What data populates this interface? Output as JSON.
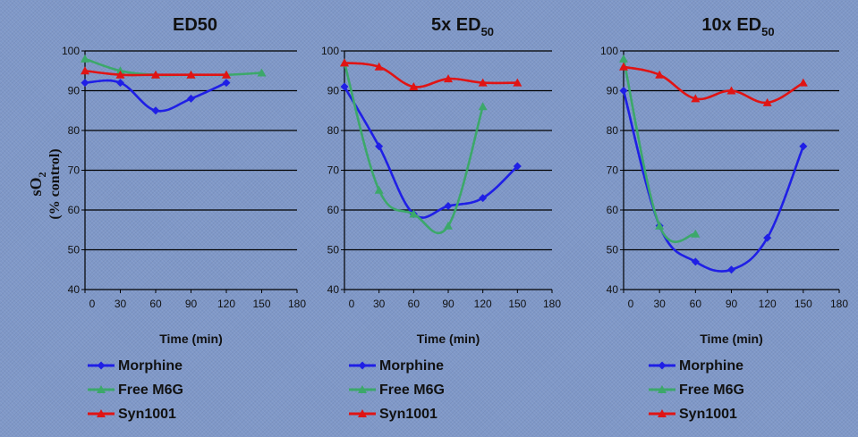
{
  "y_axis_label": {
    "main": "sO",
    "sub": "2",
    "units": "(% control)"
  },
  "chart_data": [
    {
      "type": "line",
      "title": "ED50",
      "title_sub": "",
      "xlabel": "Time (min)",
      "ylabel": "sO2 (% control)",
      "x_ticks": [
        0,
        30,
        60,
        90,
        120,
        150,
        180
      ],
      "y_ticks": [
        40,
        50,
        60,
        70,
        80,
        90,
        100
      ],
      "xlim": [
        0,
        180
      ],
      "ylim": [
        40,
        100
      ],
      "grid": "horizontal",
      "legend_placement": "bottom",
      "series": [
        {
          "name": "Morphine",
          "color": "#1f1fe6",
          "marker": "diamond",
          "x": [
            0,
            30,
            60,
            90,
            120
          ],
          "y": [
            92,
            92,
            85,
            88,
            92
          ]
        },
        {
          "name": "Free M6G",
          "color": "#3ca86a",
          "marker": "triangle",
          "x": [
            0,
            30,
            60,
            90,
            120,
            150
          ],
          "y": [
            98,
            95,
            94,
            94,
            94,
            94.5
          ]
        },
        {
          "name": "Syn1001",
          "color": "#e01414",
          "marker": "triangle",
          "x": [
            0,
            30,
            60,
            90,
            120
          ],
          "y": [
            95,
            94,
            94,
            94,
            94
          ]
        }
      ]
    },
    {
      "type": "line",
      "title": "5x ED",
      "title_sub": "50",
      "xlabel": "Time (min)",
      "ylabel": "sO2 (% control)",
      "x_ticks": [
        0,
        30,
        60,
        90,
        120,
        150,
        180
      ],
      "y_ticks": [
        40,
        50,
        60,
        70,
        80,
        90,
        100
      ],
      "xlim": [
        0,
        180
      ],
      "ylim": [
        40,
        100
      ],
      "grid": "horizontal",
      "legend_placement": "bottom",
      "series": [
        {
          "name": "Morphine",
          "color": "#1f1fe6",
          "marker": "diamond",
          "x": [
            0,
            30,
            60,
            90,
            120,
            150
          ],
          "y": [
            91,
            76,
            59,
            61,
            63,
            71
          ]
        },
        {
          "name": "Free M6G",
          "color": "#3ca86a",
          "marker": "triangle",
          "x": [
            0,
            30,
            60,
            90,
            120
          ],
          "y": [
            97,
            65,
            59,
            56,
            86
          ]
        },
        {
          "name": "Syn1001",
          "color": "#e01414",
          "marker": "triangle",
          "x": [
            0,
            30,
            60,
            90,
            120,
            150
          ],
          "y": [
            97,
            96,
            91,
            93,
            92,
            92
          ]
        }
      ]
    },
    {
      "type": "line",
      "title": "10x ED",
      "title_sub": "50",
      "xlabel": "Time (min)",
      "ylabel": "sO2 (% control)",
      "x_ticks": [
        0,
        30,
        60,
        90,
        120,
        150,
        180
      ],
      "y_ticks": [
        40,
        50,
        60,
        70,
        80,
        90,
        100
      ],
      "xlim": [
        0,
        180
      ],
      "ylim": [
        40,
        100
      ],
      "grid": "horizontal",
      "legend_placement": "bottom",
      "series": [
        {
          "name": "Morphine",
          "color": "#1f1fe6",
          "marker": "diamond",
          "x": [
            0,
            30,
            60,
            90,
            120,
            150
          ],
          "y": [
            90,
            56,
            47,
            45,
            53,
            76
          ]
        },
        {
          "name": "Free M6G",
          "color": "#3ca86a",
          "marker": "triangle",
          "x": [
            0,
            30,
            60
          ],
          "y": [
            98,
            56,
            54
          ]
        },
        {
          "name": "Syn1001",
          "color": "#e01414",
          "marker": "triangle",
          "x": [
            0,
            30,
            60,
            90,
            120,
            150
          ],
          "y": [
            96,
            94,
            88,
            90,
            87,
            92
          ]
        }
      ]
    }
  ]
}
